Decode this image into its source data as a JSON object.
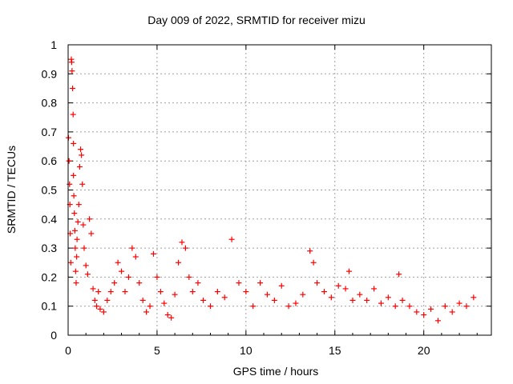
{
  "chart_data": {
    "type": "scatter",
    "title": "Day 009 of 2022, SRMTID for receiver mizu",
    "xlabel": "GPS time / hours",
    "ylabel": "SRMTID / TECUs",
    "xlim": [
      0,
      23.8
    ],
    "ylim": [
      0,
      1
    ],
    "xticks": [
      "0",
      "5",
      "10",
      "15",
      "20"
    ],
    "xtick_values": [
      0,
      5,
      10,
      15,
      20
    ],
    "yticks": [
      "0",
      "0.1",
      "0.2",
      "0.3",
      "0.4",
      "0.5",
      "0.6",
      "0.7",
      "0.8",
      "0.9",
      "1"
    ],
    "ytick_values": [
      0,
      0.1,
      0.2,
      0.3,
      0.4,
      0.5,
      0.6,
      0.7,
      0.8,
      0.9,
      1
    ],
    "grid": true,
    "marker": "+",
    "color": "#ff0000",
    "series": [
      {
        "name": "SRMTID",
        "x": [
          0.02,
          0.05,
          0.08,
          0.1,
          0.12,
          0.15,
          0.18,
          0.2,
          0.22,
          0.25,
          0.28,
          0.3,
          0.3,
          0.32,
          0.35,
          0.38,
          0.4,
          0.42,
          0.45,
          0.48,
          0.5,
          0.55,
          0.6,
          0.65,
          0.7,
          0.75,
          0.8,
          0.85,
          0.9,
          1.0,
          1.1,
          1.2,
          1.3,
          1.4,
          1.5,
          1.6,
          1.7,
          1.8,
          2.0,
          2.2,
          2.4,
          2.6,
          2.8,
          3.0,
          3.2,
          3.4,
          3.6,
          3.8,
          4.0,
          4.2,
          4.4,
          4.6,
          4.8,
          5.0,
          5.2,
          5.4,
          5.6,
          5.8,
          6.0,
          6.2,
          6.4,
          6.6,
          6.8,
          7.0,
          7.3,
          7.6,
          8.0,
          8.4,
          8.8,
          9.2,
          9.6,
          10.0,
          10.4,
          10.8,
          11.2,
          11.6,
          12.0,
          12.4,
          12.8,
          13.2,
          13.6,
          13.8,
          14.0,
          14.4,
          14.8,
          15.2,
          15.6,
          15.8,
          16.0,
          16.4,
          16.8,
          17.2,
          17.6,
          18.0,
          18.4,
          18.6,
          18.8,
          19.2,
          19.6,
          20.0,
          20.4,
          20.8,
          21.2,
          21.6,
          22.0,
          22.4,
          22.8
        ],
        "y": [
          0.68,
          0.6,
          0.52,
          0.45,
          0.35,
          0.25,
          0.95,
          0.94,
          0.91,
          0.85,
          0.76,
          0.66,
          0.55,
          0.48,
          0.42,
          0.36,
          0.3,
          0.22,
          0.18,
          0.27,
          0.33,
          0.39,
          0.45,
          0.58,
          0.64,
          0.62,
          0.52,
          0.38,
          0.3,
          0.24,
          0.21,
          0.4,
          0.35,
          0.16,
          0.12,
          0.1,
          0.15,
          0.09,
          0.08,
          0.12,
          0.15,
          0.18,
          0.25,
          0.22,
          0.15,
          0.2,
          0.3,
          0.27,
          0.18,
          0.12,
          0.08,
          0.1,
          0.28,
          0.2,
          0.15,
          0.11,
          0.07,
          0.06,
          0.14,
          0.25,
          0.32,
          0.3,
          0.2,
          0.15,
          0.18,
          0.12,
          0.1,
          0.15,
          0.13,
          0.33,
          0.18,
          0.15,
          0.1,
          0.18,
          0.14,
          0.12,
          0.17,
          0.1,
          0.11,
          0.14,
          0.29,
          0.25,
          0.18,
          0.15,
          0.13,
          0.17,
          0.16,
          0.22,
          0.12,
          0.14,
          0.12,
          0.16,
          0.11,
          0.13,
          0.1,
          0.21,
          0.12,
          0.1,
          0.08,
          0.07,
          0.09,
          0.05,
          0.1,
          0.08,
          0.11,
          0.1,
          0.13
        ]
      }
    ]
  }
}
